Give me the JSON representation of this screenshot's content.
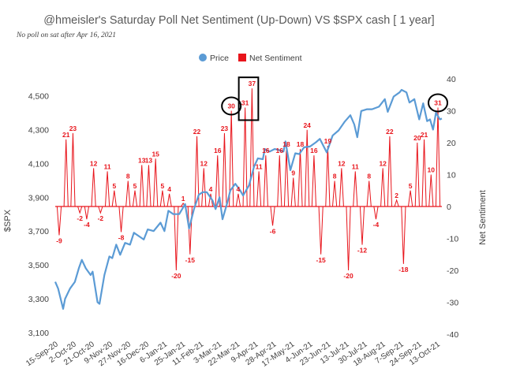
{
  "title": "@hmeisler's Saturday Poll Net Sentiment (Up-Down) VS $SPX  cash [ 1 year]",
  "note": "No poll on sat after  Apr 16, 2021",
  "colors": {
    "price": "#5b9bd5",
    "sentiment": "#e8141b",
    "text": "#404040",
    "zero": "#e8141b"
  },
  "chart_data": {
    "type": "line",
    "legend": {
      "position": "top",
      "entries": [
        "Price",
        "Net Sentiment"
      ]
    },
    "grid": false,
    "y_left": {
      "label": "$SPX",
      "range": [
        3100,
        4600
      ],
      "ticks": [
        "3,100",
        "3,300",
        "3,500",
        "3,700",
        "3,900",
        "4,100",
        "4,300",
        "4,500"
      ]
    },
    "y_right": {
      "label": "Net Sentiment",
      "range": [
        -40,
        40
      ],
      "ticks": [
        "-40",
        "-30",
        "-20",
        "-10",
        "0",
        "10",
        "20",
        "30",
        "40"
      ]
    },
    "x_axis": {
      "start": "2020-09-15",
      "end": "2021-10-13",
      "tick_labels": [
        "15-Sep-20",
        "2-Oct-20",
        "21-Oct-20",
        "9-Nov-20",
        "27-Nov-20",
        "16-Dec-20",
        "6-Jan-21",
        "25-Jan-21",
        "11-Feb-21",
        "3-Mar-21",
        "22-Mar-21",
        "9-Apr-21",
        "28-Apr-21",
        "17-May-21",
        "4-Jun-21",
        "23-Jun-21",
        "13-Jul-21",
        "30-Jul-21",
        "18-Aug-21",
        "7-Sep-21",
        "24-Sep-21",
        "13-Oct-21"
      ]
    },
    "series": [
      {
        "name": "Price",
        "axis": "left",
        "points": [
          [
            "2020-09-15",
            3400
          ],
          [
            "2020-09-18",
            3360
          ],
          [
            "2020-09-23",
            3240
          ],
          [
            "2020-09-25",
            3300
          ],
          [
            "2020-09-30",
            3360
          ],
          [
            "2020-10-05",
            3400
          ],
          [
            "2020-10-09",
            3480
          ],
          [
            "2020-10-12",
            3530
          ],
          [
            "2020-10-16",
            3480
          ],
          [
            "2020-10-21",
            3440
          ],
          [
            "2020-10-23",
            3460
          ],
          [
            "2020-10-28",
            3280
          ],
          [
            "2020-10-30",
            3270
          ],
          [
            "2020-11-04",
            3440
          ],
          [
            "2020-11-09",
            3550
          ],
          [
            "2020-11-12",
            3540
          ],
          [
            "2020-11-16",
            3620
          ],
          [
            "2020-11-20",
            3560
          ],
          [
            "2020-11-25",
            3630
          ],
          [
            "2020-11-30",
            3620
          ],
          [
            "2020-12-04",
            3690
          ],
          [
            "2020-12-09",
            3670
          ],
          [
            "2020-12-14",
            3650
          ],
          [
            "2020-12-18",
            3710
          ],
          [
            "2020-12-24",
            3700
          ],
          [
            "2020-12-31",
            3750
          ],
          [
            "2021-01-04",
            3700
          ],
          [
            "2021-01-08",
            3820
          ],
          [
            "2021-01-13",
            3800
          ],
          [
            "2021-01-19",
            3800
          ],
          [
            "2021-01-25",
            3860
          ],
          [
            "2021-01-29",
            3715
          ],
          [
            "2021-02-03",
            3830
          ],
          [
            "2021-02-08",
            3915
          ],
          [
            "2021-02-12",
            3930
          ],
          [
            "2021-02-16",
            3930
          ],
          [
            "2021-02-22",
            3880
          ],
          [
            "2021-02-25",
            3830
          ],
          [
            "2021-03-01",
            3900
          ],
          [
            "2021-03-04",
            3770
          ],
          [
            "2021-03-09",
            3870
          ],
          [
            "2021-03-12",
            3940
          ],
          [
            "2021-03-17",
            3980
          ],
          [
            "2021-03-22",
            3940
          ],
          [
            "2021-03-25",
            3910
          ],
          [
            "2021-03-31",
            3970
          ],
          [
            "2021-04-05",
            4080
          ],
          [
            "2021-04-09",
            4130
          ],
          [
            "2021-04-14",
            4125
          ],
          [
            "2021-04-16",
            4185
          ],
          [
            "2021-04-21",
            4170
          ],
          [
            "2021-04-26",
            4185
          ],
          [
            "2021-04-30",
            4180
          ],
          [
            "2021-05-05",
            4170
          ],
          [
            "2021-05-07",
            4230
          ],
          [
            "2021-05-12",
            4060
          ],
          [
            "2021-05-17",
            4160
          ],
          [
            "2021-05-21",
            4155
          ],
          [
            "2021-05-26",
            4195
          ],
          [
            "2021-06-01",
            4200
          ],
          [
            "2021-06-07",
            4225
          ],
          [
            "2021-06-11",
            4245
          ],
          [
            "2021-06-18",
            4165
          ],
          [
            "2021-06-24",
            4265
          ],
          [
            "2021-06-30",
            4295
          ],
          [
            "2021-07-06",
            4345
          ],
          [
            "2021-07-12",
            4385
          ],
          [
            "2021-07-16",
            4330
          ],
          [
            "2021-07-19",
            4255
          ],
          [
            "2021-07-23",
            4410
          ],
          [
            "2021-07-29",
            4420
          ],
          [
            "2021-08-03",
            4420
          ],
          [
            "2021-08-10",
            4435
          ],
          [
            "2021-08-16",
            4480
          ],
          [
            "2021-08-19",
            4405
          ],
          [
            "2021-08-25",
            4495
          ],
          [
            "2021-08-31",
            4520
          ],
          [
            "2021-09-02",
            4535
          ],
          [
            "2021-09-07",
            4520
          ],
          [
            "2021-09-10",
            4460
          ],
          [
            "2021-09-15",
            4480
          ],
          [
            "2021-09-20",
            4360
          ],
          [
            "2021-09-24",
            4455
          ],
          [
            "2021-09-28",
            4350
          ],
          [
            "2021-10-01",
            4360
          ],
          [
            "2021-10-04",
            4300
          ],
          [
            "2021-10-07",
            4400
          ],
          [
            "2021-10-11",
            4360
          ],
          [
            "2021-10-13",
            4365
          ]
        ]
      },
      {
        "name": "Net Sentiment",
        "axis": "right",
        "points": [
          [
            "2020-09-19",
            -9
          ],
          [
            "2020-09-26",
            21
          ],
          [
            "2020-10-03",
            23
          ],
          [
            "2020-10-10",
            -2
          ],
          [
            "2020-10-17",
            -4
          ],
          [
            "2020-10-24",
            12
          ],
          [
            "2020-10-31",
            -2
          ],
          [
            "2020-11-07",
            11
          ],
          [
            "2020-11-14",
            5
          ],
          [
            "2020-11-21",
            -8
          ],
          [
            "2020-11-28",
            8
          ],
          [
            "2020-12-05",
            5
          ],
          [
            "2020-12-12",
            13
          ],
          [
            "2020-12-19",
            13
          ],
          [
            "2020-12-26",
            15
          ],
          [
            "2021-01-02",
            5
          ],
          [
            "2021-01-09",
            4
          ],
          [
            "2021-01-16",
            -20
          ],
          [
            "2021-01-23",
            1
          ],
          [
            "2021-01-30",
            -15
          ],
          [
            "2021-02-06",
            22
          ],
          [
            "2021-02-13",
            12
          ],
          [
            "2021-02-20",
            4
          ],
          [
            "2021-02-27",
            16
          ],
          [
            "2021-03-06",
            23
          ],
          [
            "2021-03-13",
            30
          ],
          [
            "2021-03-20",
            4
          ],
          [
            "2021-03-27",
            31
          ],
          [
            "2021-04-03",
            37
          ],
          [
            "2021-04-10",
            11
          ],
          [
            "2021-04-17",
            16
          ],
          [
            "2021-04-24",
            -6
          ],
          [
            "2021-05-01",
            16
          ],
          [
            "2021-05-08",
            18
          ],
          [
            "2021-05-15",
            9
          ],
          [
            "2021-05-22",
            18
          ],
          [
            "2021-05-29",
            24
          ],
          [
            "2021-06-05",
            16
          ],
          [
            "2021-06-12",
            -15
          ],
          [
            "2021-06-19",
            19
          ],
          [
            "2021-06-26",
            8
          ],
          [
            "2021-07-03",
            12
          ],
          [
            "2021-07-10",
            -20
          ],
          [
            "2021-07-17",
            11
          ],
          [
            "2021-07-24",
            -12
          ],
          [
            "2021-07-31",
            8
          ],
          [
            "2021-08-07",
            -4
          ],
          [
            "2021-08-14",
            12
          ],
          [
            "2021-08-21",
            22
          ],
          [
            "2021-08-28",
            2
          ],
          [
            "2021-09-04",
            -18
          ],
          [
            "2021-09-11",
            5
          ],
          [
            "2021-09-18",
            20
          ],
          [
            "2021-09-25",
            21
          ],
          [
            "2021-10-02",
            10
          ],
          [
            "2021-10-09",
            31
          ]
        ]
      }
    ],
    "annotations": [
      {
        "type": "circle",
        "target": "Net Sentiment",
        "date": "2021-03-13",
        "value": 30
      },
      {
        "type": "rectangle",
        "target": "Net Sentiment",
        "dates": [
          "2021-03-27",
          "2021-04-03"
        ],
        "values": [
          31,
          37
        ]
      },
      {
        "type": "circle",
        "target": "Net Sentiment",
        "date": "2021-10-09",
        "value": 31
      }
    ]
  }
}
